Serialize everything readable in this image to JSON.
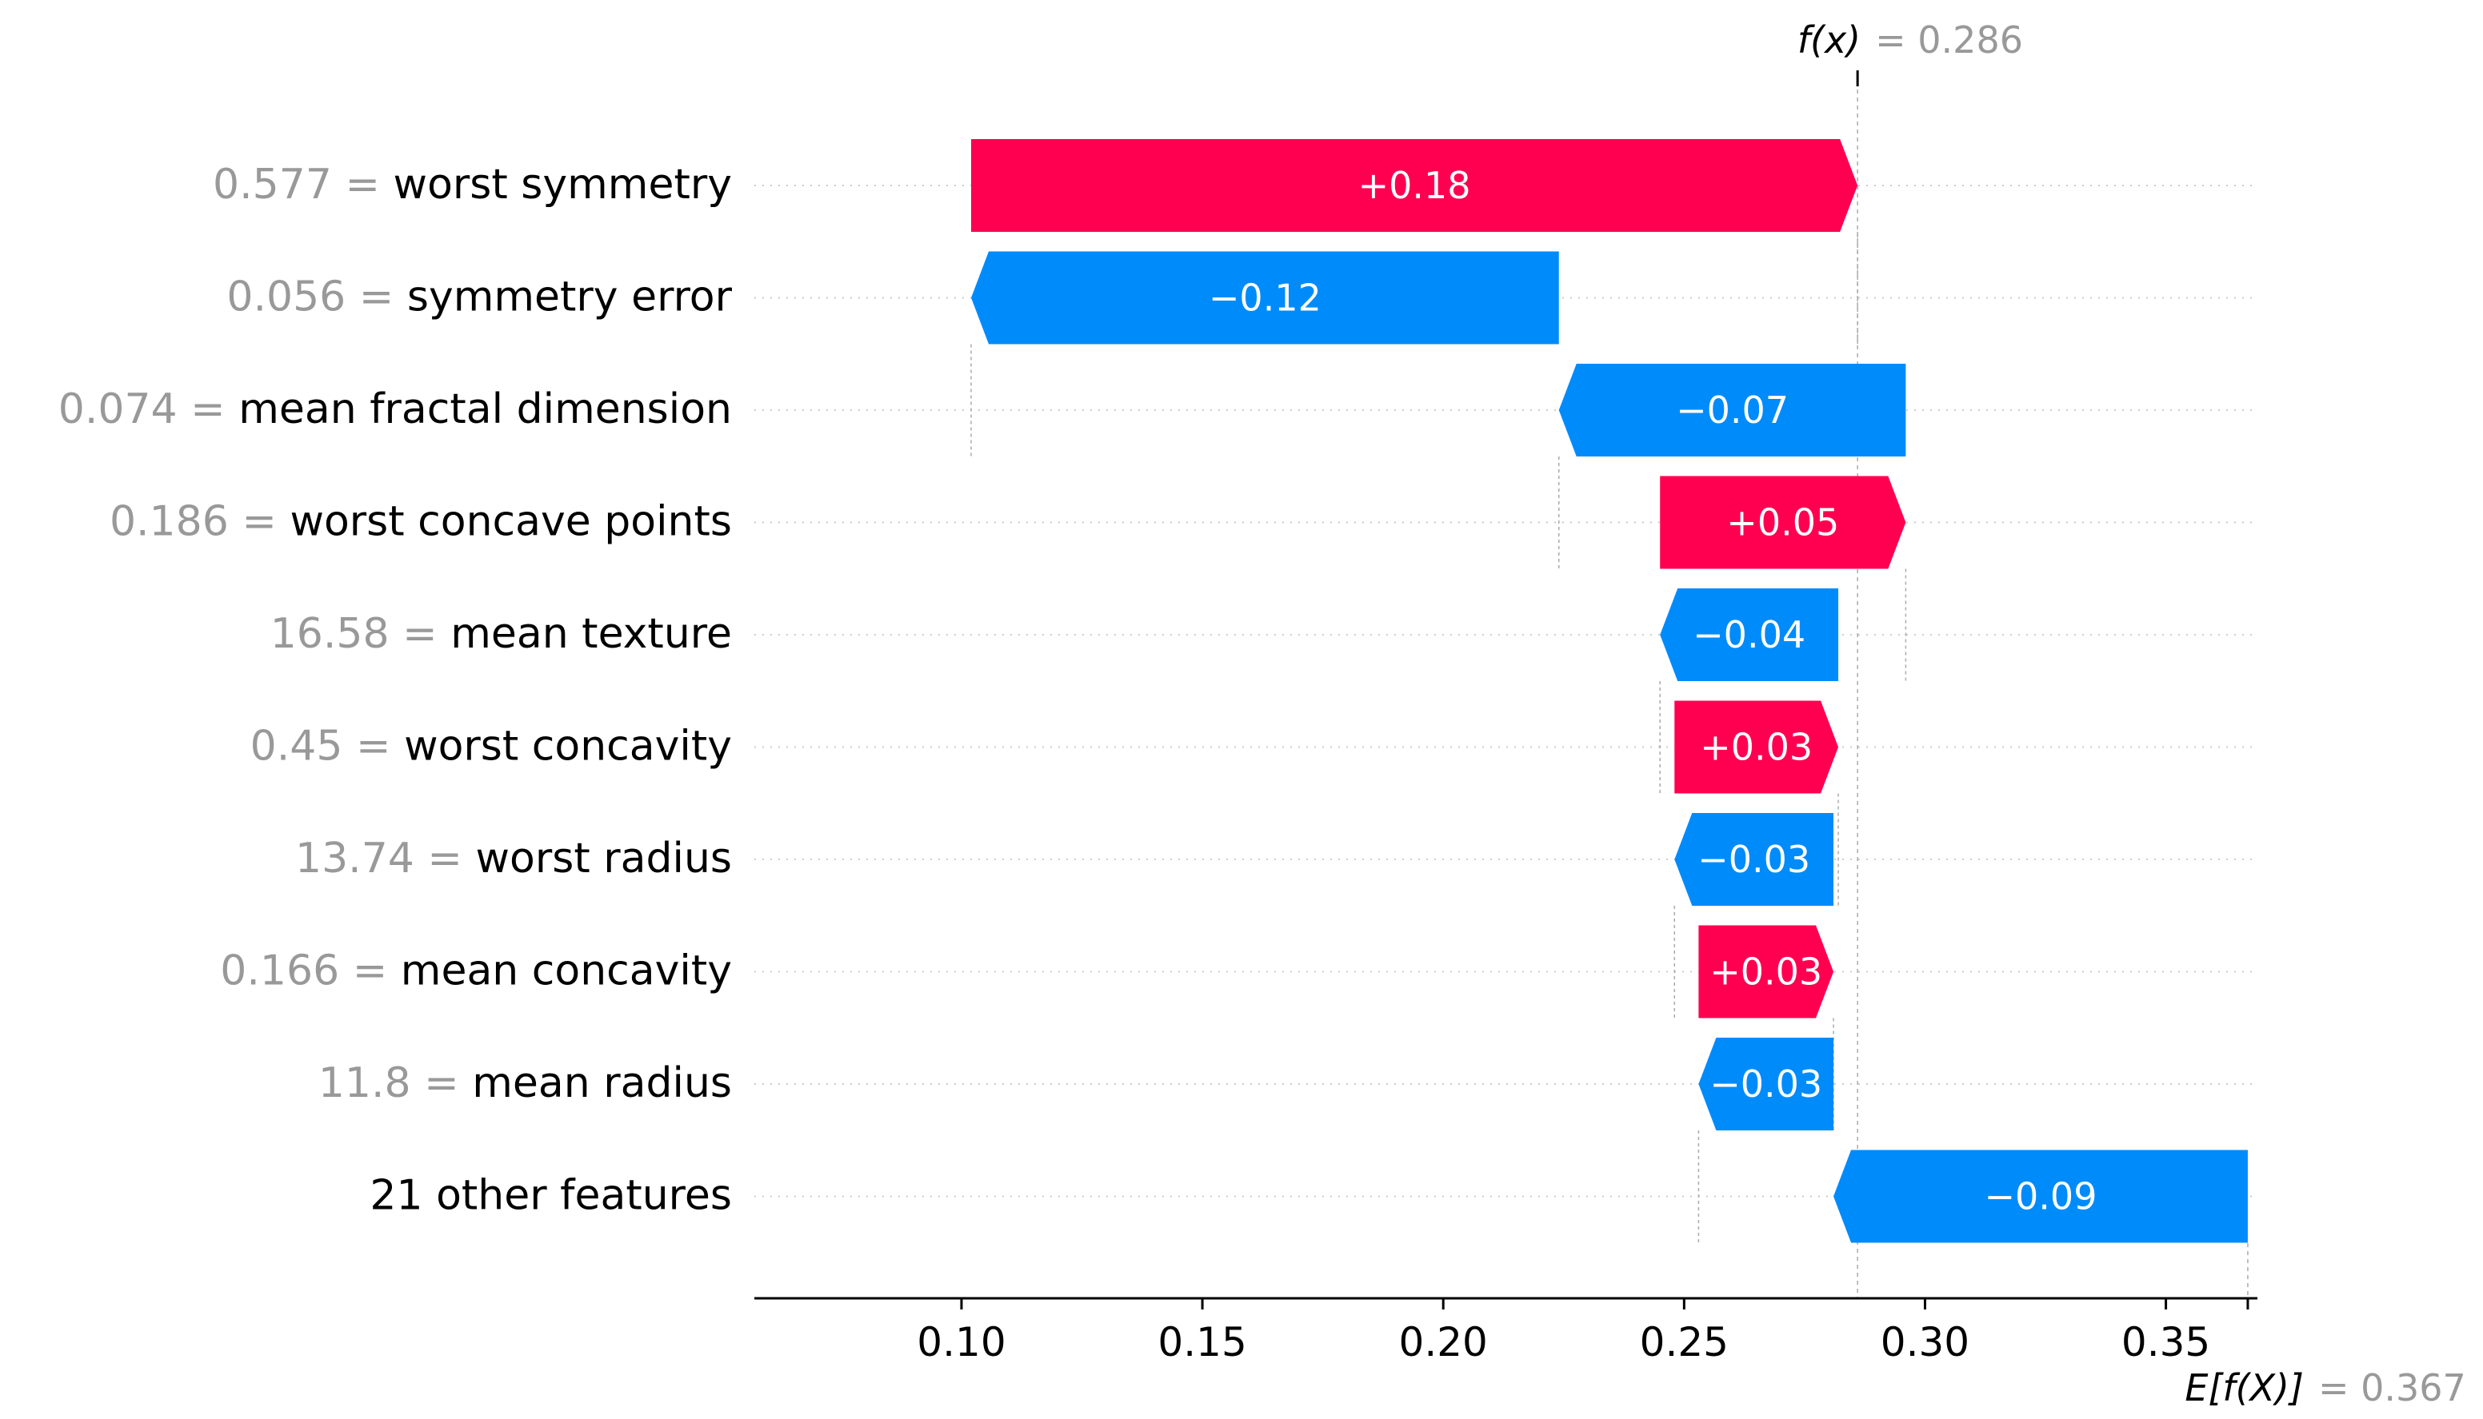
{
  "chart_data": {
    "type": "waterfall",
    "title": "",
    "xlabel": "",
    "ylabel": "",
    "xlim": [
      0.057,
      0.369
    ],
    "xticks": [
      0.1,
      0.15,
      0.2,
      0.25,
      0.3,
      0.35
    ],
    "xtick_labels": [
      "0.10",
      "0.15",
      "0.20",
      "0.25",
      "0.30",
      "0.35"
    ],
    "grid": false,
    "colors": {
      "positive": "#ff0051",
      "negative": "#008bfb",
      "neutral_text": "#999999"
    },
    "fx": {
      "label": "f(x)",
      "value_text": "= 0.286",
      "value": 0.286
    },
    "efx": {
      "label": "E[f(X)]",
      "value_text": "= 0.367",
      "value": 0.367
    },
    "features": [
      {
        "value_text": "0.577",
        "name": "worst symmetry",
        "label": "+0.18",
        "start": 0.102,
        "end": 0.286
      },
      {
        "value_text": "0.056",
        "name": "symmetry error",
        "label": "−0.12",
        "start": 0.224,
        "end": 0.102
      },
      {
        "value_text": "0.074",
        "name": "mean fractal dimension",
        "label": "−0.07",
        "start": 0.296,
        "end": 0.224
      },
      {
        "value_text": "0.186",
        "name": "worst concave points",
        "label": "+0.05",
        "start": 0.245,
        "end": 0.296
      },
      {
        "value_text": "16.58",
        "name": "mean texture",
        "label": "−0.04",
        "start": 0.282,
        "end": 0.245
      },
      {
        "value_text": "0.45",
        "name": "worst concavity",
        "label": "+0.03",
        "start": 0.248,
        "end": 0.282
      },
      {
        "value_text": "13.74",
        "name": "worst radius",
        "label": "−0.03",
        "start": 0.281,
        "end": 0.248
      },
      {
        "value_text": "0.166",
        "name": "mean concavity",
        "label": "+0.03",
        "start": 0.253,
        "end": 0.281
      },
      {
        "value_text": "11.8",
        "name": "mean radius",
        "label": "−0.03",
        "start": 0.281,
        "end": 0.253
      },
      {
        "value_text": "",
        "name": "21 other features",
        "label": "−0.09",
        "start": 0.367,
        "end": 0.281
      }
    ]
  }
}
